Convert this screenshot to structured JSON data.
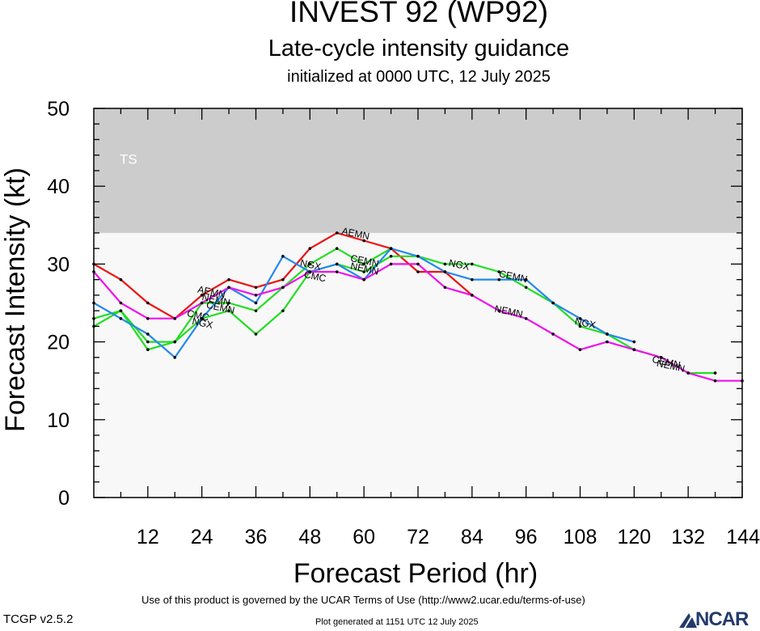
{
  "title": "INVEST 92 (WP92)",
  "subtitle": "Late-cycle intensity guidance",
  "init_line": "initialized at 0000 UTC, 12 July 2025",
  "footer": {
    "terms": "Use of this product is governed by the UCAR Terms of Use (http://www2.ucar.edu/terms-of-use)",
    "version": "TCGP v2.5.2",
    "generated": "Plot generated at 1151 UTC   12 July 2025",
    "logo_text": "NCAR"
  },
  "colors": {
    "ts_band": "#cccccc",
    "plot_bg": "#f8f8f8",
    "red": "#ee1111",
    "green": "#22dd22",
    "blue": "#2288ee",
    "magenta": "#ee11ee",
    "logo": "#233a6b"
  },
  "chart_data": {
    "type": "line",
    "title": "INVEST 92 (WP92)",
    "xlabel": "Forecast Period (hr)",
    "ylabel": "Forecast Intensity (kt)",
    "xlim": [
      0,
      144
    ],
    "ylim": [
      0,
      50
    ],
    "xticks": [
      12,
      24,
      36,
      48,
      60,
      72,
      84,
      96,
      108,
      120,
      132,
      144
    ],
    "yticks": [
      0,
      10,
      20,
      30,
      40,
      50
    ],
    "grid": false,
    "band": {
      "label": "TS",
      "from": 34,
      "to": 50
    },
    "series": [
      {
        "name": "AEMN",
        "color": "red",
        "x": [
          0,
          6,
          12,
          18,
          24,
          30,
          36,
          42,
          48,
          54,
          60,
          66,
          72,
          78,
          84
        ],
        "y": [
          30,
          28,
          25,
          23,
          26,
          28,
          27,
          28,
          32,
          34,
          33,
          32,
          29,
          29,
          26
        ],
        "labels": [
          {
            "text": "AEMN",
            "x": 26,
            "y": 26
          },
          {
            "text": "AEMN",
            "x": 58,
            "y": 33.5
          }
        ]
      },
      {
        "name": "CMC",
        "color": "green",
        "x": [
          0,
          6,
          12,
          18,
          24,
          30,
          36,
          42,
          48,
          54,
          60,
          66
        ],
        "y": [
          23,
          24,
          19,
          20,
          25,
          25,
          24,
          27,
          30,
          32,
          30,
          32
        ],
        "labels": [
          {
            "text": "CMC",
            "x": 23,
            "y": 23
          },
          {
            "text": "CMC",
            "x": 49,
            "y": 28
          }
        ]
      },
      {
        "name": "CEMN",
        "color": "green",
        "x": [
          0,
          6,
          12,
          18,
          24,
          30,
          36,
          42,
          48,
          54,
          60,
          66,
          72,
          78,
          84,
          90,
          96,
          102,
          108,
          114,
          120,
          126,
          132,
          138
        ],
        "y": [
          22,
          24,
          20,
          20,
          23,
          24,
          21,
          24,
          29,
          30,
          29,
          31,
          31,
          30,
          30,
          29,
          27,
          25,
          22,
          21,
          19,
          18,
          16,
          16
        ],
        "labels": [
          {
            "text": "CEMN",
            "x": 28,
            "y": 24
          },
          {
            "text": "CEMN",
            "x": 60,
            "y": 30
          },
          {
            "text": "CEMN",
            "x": 93,
            "y": 28
          },
          {
            "text": "CEMN",
            "x": 127,
            "y": 17
          }
        ]
      },
      {
        "name": "NGX",
        "color": "blue",
        "x": [
          0,
          6,
          12,
          18,
          24,
          30,
          36,
          42,
          48,
          54,
          60,
          66,
          72,
          78,
          84,
          90,
          96,
          102,
          108,
          114,
          120
        ],
        "y": [
          25,
          23,
          21,
          18,
          23,
          27,
          25,
          31,
          29,
          30,
          28,
          32,
          31,
          29,
          28,
          28,
          28,
          25,
          23,
          21,
          20
        ],
        "labels": [
          {
            "text": "NGX",
            "x": 24,
            "y": 22
          },
          {
            "text": "NGX",
            "x": 48,
            "y": 29.5
          },
          {
            "text": "NGX",
            "x": 81,
            "y": 29.5
          },
          {
            "text": "NGX",
            "x": 109,
            "y": 22
          }
        ]
      },
      {
        "name": "NEMN",
        "color": "magenta",
        "x": [
          0,
          6,
          12,
          18,
          24,
          30,
          36,
          42,
          48,
          54,
          60,
          66,
          72,
          78,
          84,
          90,
          96,
          102,
          108,
          114,
          120,
          126,
          132,
          138,
          144
        ],
        "y": [
          29,
          25,
          23,
          23,
          25,
          27,
          26,
          27,
          29,
          29,
          28,
          30,
          30,
          27,
          26,
          24,
          23,
          21,
          19,
          20,
          19,
          18,
          16,
          15,
          15
        ],
        "labels": [
          {
            "text": "NEMN",
            "x": 27,
            "y": 25
          },
          {
            "text": "NEMN",
            "x": 60,
            "y": 29
          },
          {
            "text": "NEMN",
            "x": 92,
            "y": 23.5
          },
          {
            "text": "NEMN",
            "x": 128,
            "y": 16.5
          }
        ]
      }
    ]
  }
}
